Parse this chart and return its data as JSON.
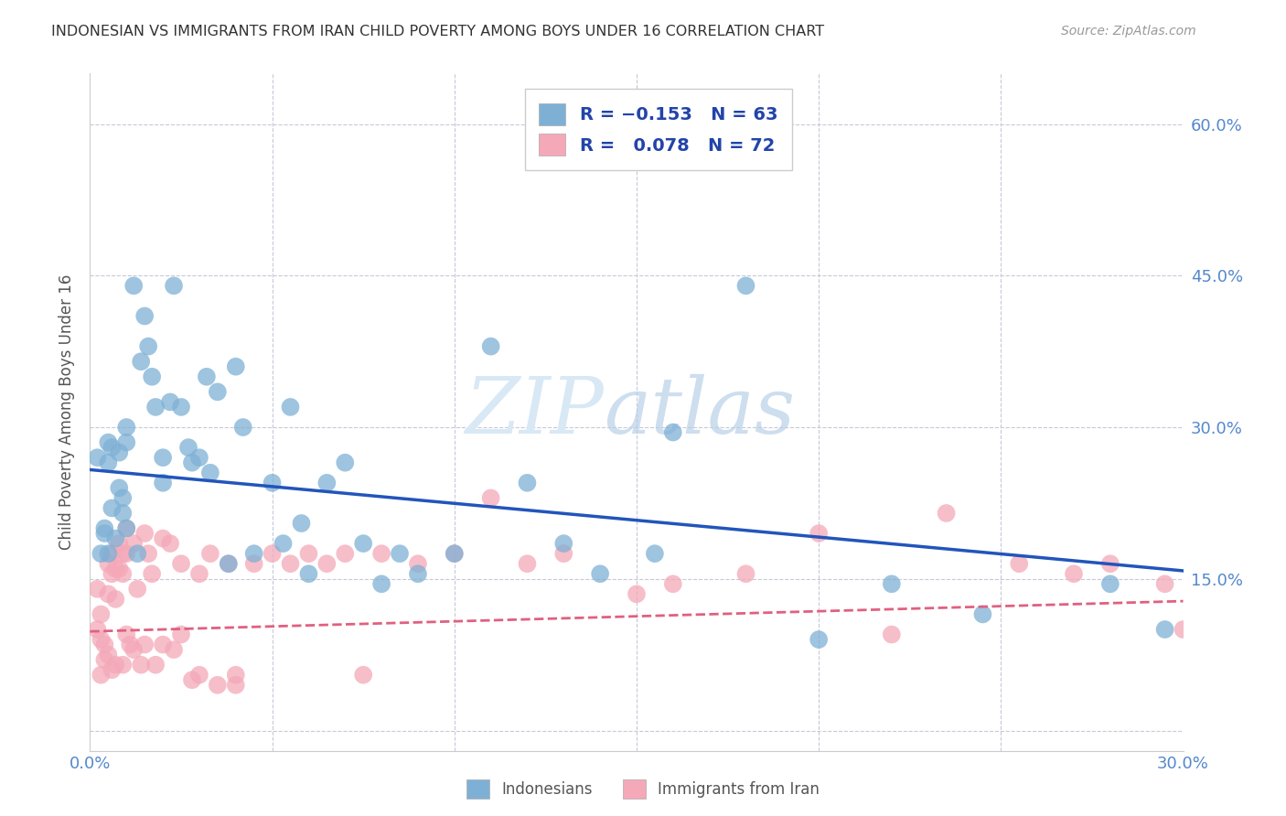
{
  "title": "INDONESIAN VS IMMIGRANTS FROM IRAN CHILD POVERTY AMONG BOYS UNDER 16 CORRELATION CHART",
  "source": "Source: ZipAtlas.com",
  "ylabel": "Child Poverty Among Boys Under 16",
  "xlim": [
    0.0,
    0.3
  ],
  "ylim": [
    -0.02,
    0.65
  ],
  "xtick_positions": [
    0.0,
    0.05,
    0.1,
    0.15,
    0.2,
    0.25,
    0.3
  ],
  "xtick_labels": [
    "0.0%",
    "",
    "",
    "",
    "",
    "",
    "30.0%"
  ],
  "ytick_positions": [
    0.0,
    0.15,
    0.3,
    0.45,
    0.6
  ],
  "ytick_labels_right": [
    "",
    "15.0%",
    "30.0%",
    "45.0%",
    "60.0%"
  ],
  "blue_color": "#7EB0D5",
  "pink_color": "#F4A8B8",
  "blue_line_color": "#2255BB",
  "pink_line_color": "#E06080",
  "grid_color": "#C8C8D8",
  "tick_color": "#5588CC",
  "watermark_color": "#D8E8F5",
  "indonesians_x": [
    0.002,
    0.003,
    0.004,
    0.004,
    0.005,
    0.005,
    0.005,
    0.006,
    0.006,
    0.007,
    0.008,
    0.008,
    0.009,
    0.009,
    0.01,
    0.01,
    0.01,
    0.012,
    0.013,
    0.014,
    0.015,
    0.016,
    0.017,
    0.018,
    0.02,
    0.02,
    0.022,
    0.023,
    0.025,
    0.027,
    0.028,
    0.03,
    0.032,
    0.033,
    0.035,
    0.038,
    0.04,
    0.042,
    0.045,
    0.05,
    0.053,
    0.055,
    0.058,
    0.06,
    0.065,
    0.07,
    0.075,
    0.08,
    0.085,
    0.09,
    0.1,
    0.11,
    0.12,
    0.13,
    0.14,
    0.155,
    0.16,
    0.18,
    0.2,
    0.22,
    0.245,
    0.28,
    0.295
  ],
  "indonesians_y": [
    0.27,
    0.175,
    0.2,
    0.195,
    0.285,
    0.265,
    0.175,
    0.28,
    0.22,
    0.19,
    0.275,
    0.24,
    0.23,
    0.215,
    0.3,
    0.285,
    0.2,
    0.44,
    0.175,
    0.365,
    0.41,
    0.38,
    0.35,
    0.32,
    0.27,
    0.245,
    0.325,
    0.44,
    0.32,
    0.28,
    0.265,
    0.27,
    0.35,
    0.255,
    0.335,
    0.165,
    0.36,
    0.3,
    0.175,
    0.245,
    0.185,
    0.32,
    0.205,
    0.155,
    0.245,
    0.265,
    0.185,
    0.145,
    0.175,
    0.155,
    0.175,
    0.38,
    0.245,
    0.185,
    0.155,
    0.175,
    0.295,
    0.44,
    0.09,
    0.145,
    0.115,
    0.145,
    0.1
  ],
  "iran_x": [
    0.002,
    0.002,
    0.003,
    0.003,
    0.003,
    0.004,
    0.004,
    0.005,
    0.005,
    0.005,
    0.006,
    0.006,
    0.006,
    0.007,
    0.007,
    0.007,
    0.008,
    0.008,
    0.009,
    0.009,
    0.009,
    0.01,
    0.01,
    0.01,
    0.011,
    0.012,
    0.012,
    0.013,
    0.014,
    0.015,
    0.015,
    0.016,
    0.017,
    0.018,
    0.02,
    0.02,
    0.022,
    0.023,
    0.025,
    0.025,
    0.028,
    0.03,
    0.03,
    0.033,
    0.035,
    0.038,
    0.04,
    0.04,
    0.045,
    0.05,
    0.055,
    0.06,
    0.065,
    0.07,
    0.075,
    0.08,
    0.09,
    0.1,
    0.11,
    0.12,
    0.13,
    0.15,
    0.16,
    0.18,
    0.2,
    0.22,
    0.235,
    0.255,
    0.27,
    0.28,
    0.295,
    0.3
  ],
  "iran_y": [
    0.14,
    0.1,
    0.115,
    0.09,
    0.055,
    0.085,
    0.07,
    0.165,
    0.135,
    0.075,
    0.175,
    0.155,
    0.06,
    0.16,
    0.13,
    0.065,
    0.185,
    0.16,
    0.175,
    0.155,
    0.065,
    0.2,
    0.175,
    0.095,
    0.085,
    0.185,
    0.08,
    0.14,
    0.065,
    0.195,
    0.085,
    0.175,
    0.155,
    0.065,
    0.19,
    0.085,
    0.185,
    0.08,
    0.165,
    0.095,
    0.05,
    0.155,
    0.055,
    0.175,
    0.045,
    0.165,
    0.055,
    0.045,
    0.165,
    0.175,
    0.165,
    0.175,
    0.165,
    0.175,
    0.055,
    0.175,
    0.165,
    0.175,
    0.23,
    0.165,
    0.175,
    0.135,
    0.145,
    0.155,
    0.195,
    0.095,
    0.215,
    0.165,
    0.155,
    0.165,
    0.145,
    0.1
  ],
  "blue_trend_x": [
    0.0,
    0.3
  ],
  "blue_trend_y": [
    0.258,
    0.158
  ],
  "pink_trend_x": [
    0.0,
    0.3
  ],
  "pink_trend_y": [
    0.098,
    0.128
  ]
}
